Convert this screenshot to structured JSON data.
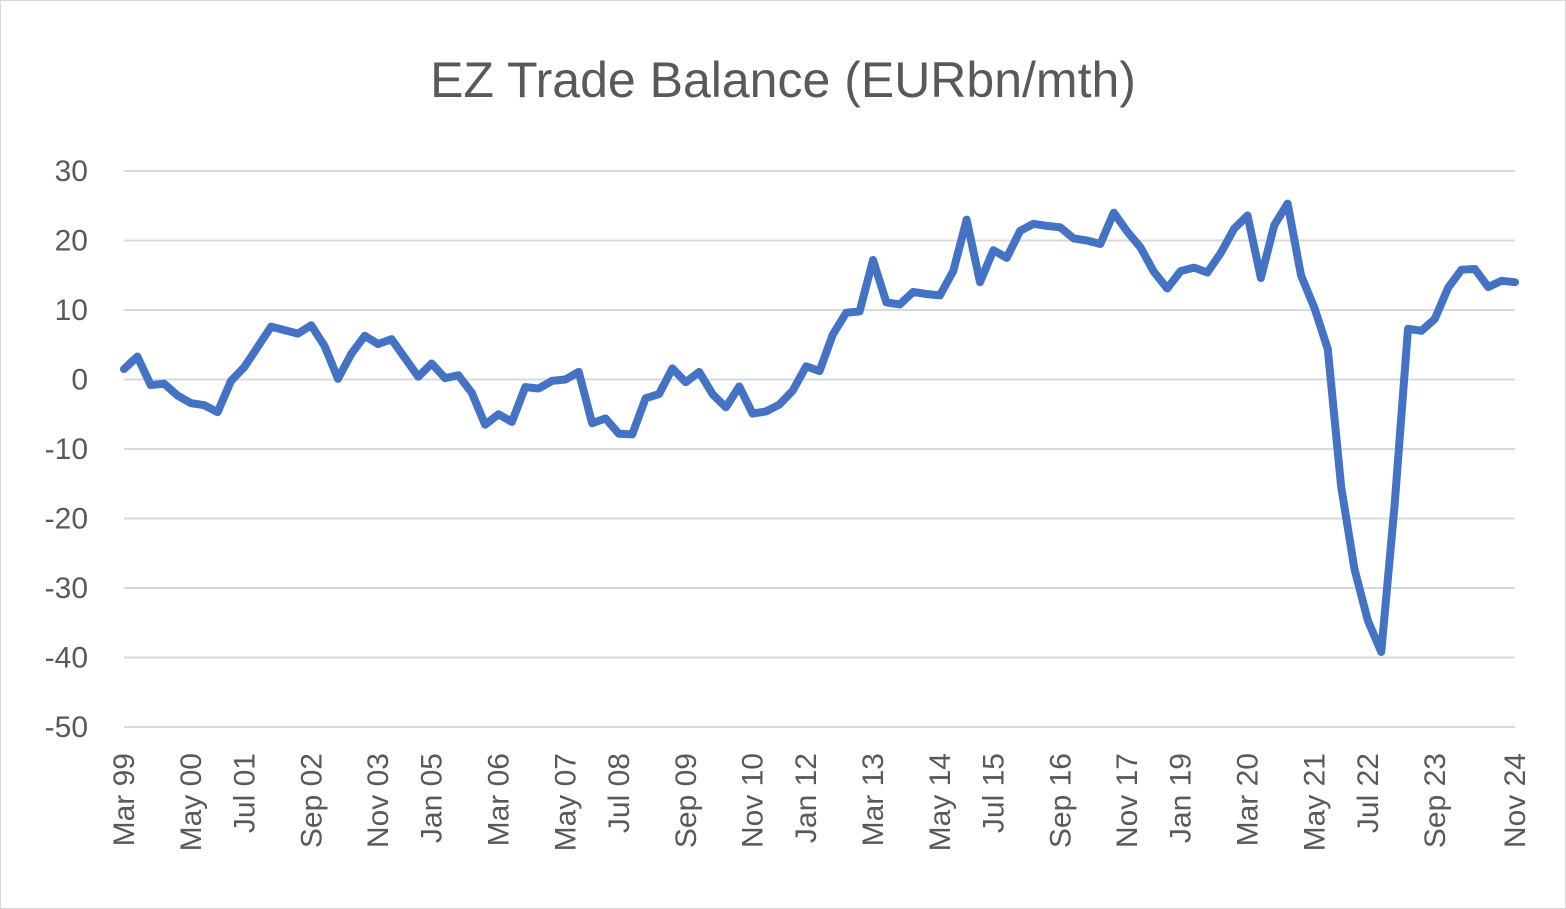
{
  "chart_data": {
    "type": "line",
    "title": "EZ Trade Balance (EURbn/mth)",
    "xlabel": "",
    "ylabel": "",
    "ylim": [
      -50,
      30
    ],
    "yticks": [
      30,
      20,
      10,
      0,
      -10,
      -20,
      -30,
      -40,
      -50
    ],
    "ytick_labels": [
      "30",
      "20",
      "10",
      "0",
      "-10",
      "-20",
      "-30",
      "-40",
      "-50"
    ],
    "x_tick_labels": [
      "Mar 99",
      "May 00",
      "Jul 01",
      "Sep 02",
      "Nov 03",
      "Jan 05",
      "Mar 06",
      "May 07",
      "Jul 08",
      "Sep 09",
      "Nov 10",
      "Jan 12",
      "Mar 13",
      "May 14",
      "Jul 15",
      "Sep 16",
      "Nov 17",
      "Jan 19",
      "Mar 20",
      "May 21",
      "Jul 22",
      "Sep 23",
      "Nov 24"
    ],
    "grid": true,
    "legend": "none",
    "color": "#4472C4",
    "series": [
      {
        "name": "EZ Trade Balance",
        "values": [
          1.5,
          3.3,
          -0.8,
          -0.6,
          -2.3,
          -3.4,
          -3.7,
          -4.7,
          -0.2,
          1.8,
          4.7,
          7.6,
          7.1,
          6.6,
          7.8,
          4.8,
          0.1,
          3.7,
          6.3,
          5.1,
          5.8,
          3.1,
          0.4,
          2.3,
          0.2,
          0.6,
          -1.9,
          -6.5,
          -5.0,
          -6.1,
          -1.1,
          -1.3,
          -0.2,
          0.0,
          1.1,
          -6.3,
          -5.6,
          -7.8,
          -7.9,
          -2.7,
          -2.1,
          1.6,
          -0.4,
          1.1,
          -2.1,
          -4.0,
          -1.0,
          -4.9,
          -4.6,
          -3.6,
          -1.6,
          1.9,
          1.2,
          6.5,
          9.6,
          9.8,
          17.2,
          11.1,
          10.8,
          12.6,
          12.3,
          12.1,
          15.6,
          23.0,
          14.0,
          18.6,
          17.5,
          21.4,
          22.4,
          22.1,
          21.9,
          20.3,
          20.0,
          19.5,
          24.0,
          21.3,
          19.0,
          15.5,
          13.1,
          15.6,
          16.1,
          15.4,
          18.2,
          21.7,
          23.6,
          14.6,
          22.2,
          25.3,
          15.0,
          10.3,
          4.4,
          -15.4,
          -27.3,
          -34.7,
          -39.2,
          -18.0,
          7.3,
          7.0,
          8.7,
          13.2,
          15.8,
          15.9,
          13.3,
          14.2,
          14.0
        ]
      }
    ]
  }
}
